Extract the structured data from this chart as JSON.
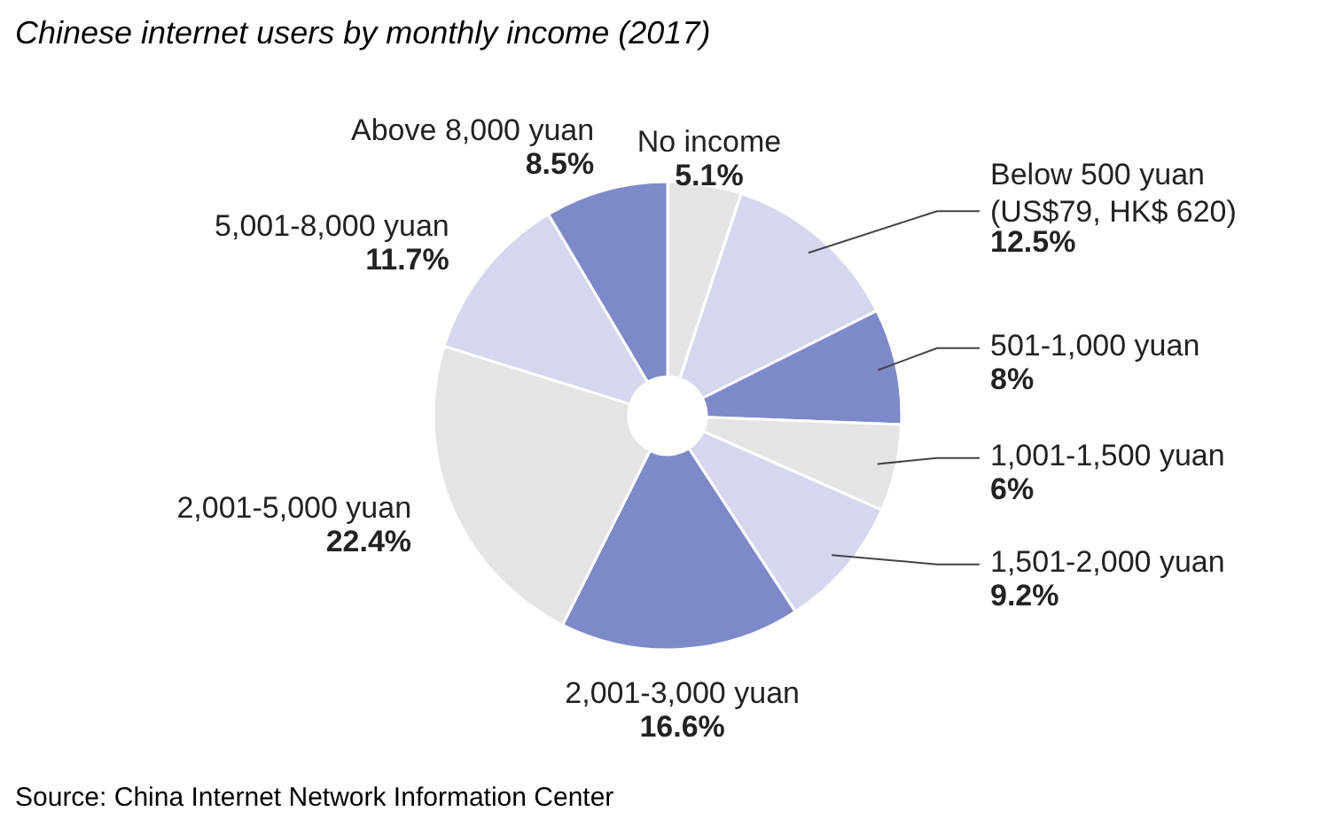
{
  "chart_data": {
    "type": "donut",
    "title": "Chinese internet users by monthly income (2017)",
    "categories": [
      "No income",
      "Below 500 yuan\n(US$79, HK$ 620)",
      "501-1,000 yuan",
      "1,001-1,500 yuan",
      "1,501-2,000 yuan",
      "2,001-3,000 yuan",
      "2,001-5,000 yuan",
      "5,001-8,000 yuan",
      "Above 8,000 yuan"
    ],
    "values": [
      5.1,
      12.5,
      8,
      6,
      9.2,
      16.6,
      22.4,
      11.7,
      8.5
    ],
    "colors": [
      "#e4e4e4",
      "#d5d7ee",
      "#7d89c8",
      "#e4e4e4",
      "#d5d7ee",
      "#7d89c8",
      "#e4e4e4",
      "#d5d7ee",
      "#7d89c8"
    ],
    "value_labels": [
      "5.1%",
      "12.5%",
      "8%",
      "6%",
      "9.2%",
      "16.6%",
      "22.4%",
      "11.7%",
      "8.5%"
    ],
    "annotations": [
      "Source: China Internet Network Information Center"
    ]
  }
}
